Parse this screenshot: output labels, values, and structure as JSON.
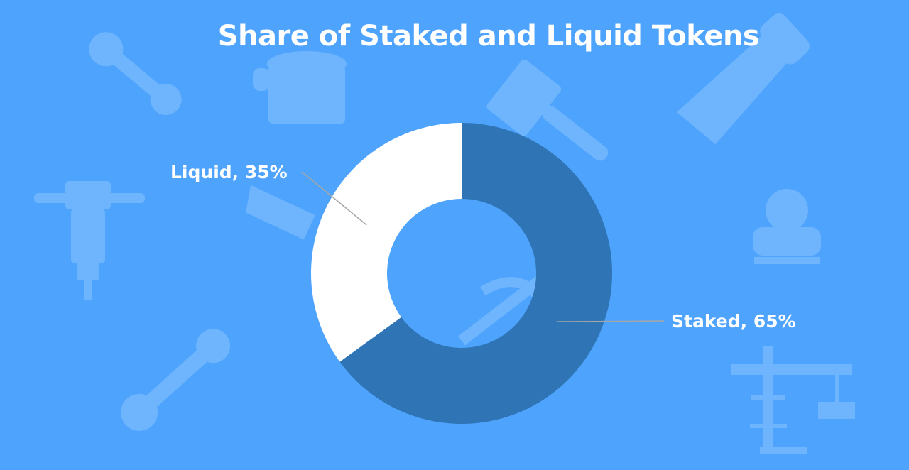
{
  "colors": {
    "background": "#4EA3FD",
    "staked": "#2F75B6",
    "liquid": "#FFFFFF",
    "text": "#FFFFFF",
    "leader": "#A6A6A6",
    "background_icon": "#6FB5FD"
  },
  "decorative_icons": [
    "wrench-icon",
    "paint-bucket-icon",
    "paintbrush-icon",
    "saw-icon",
    "jackhammer-icon",
    "hand-saw-icon",
    "worker-icon",
    "pickaxe-icon",
    "wrench-icon",
    "crane-icon"
  ],
  "chart_data": {
    "type": "pie",
    "style": "doughnut",
    "title": "Share of Staked and Liquid Tokens",
    "slices": [
      {
        "name": "Staked",
        "value": 65,
        "label": "Staked, 65%"
      },
      {
        "name": "Liquid",
        "value": 35,
        "label": "Liquid, 35%"
      }
    ],
    "unit": "%",
    "legend": "none",
    "data_labels": "outside with leader lines"
  }
}
